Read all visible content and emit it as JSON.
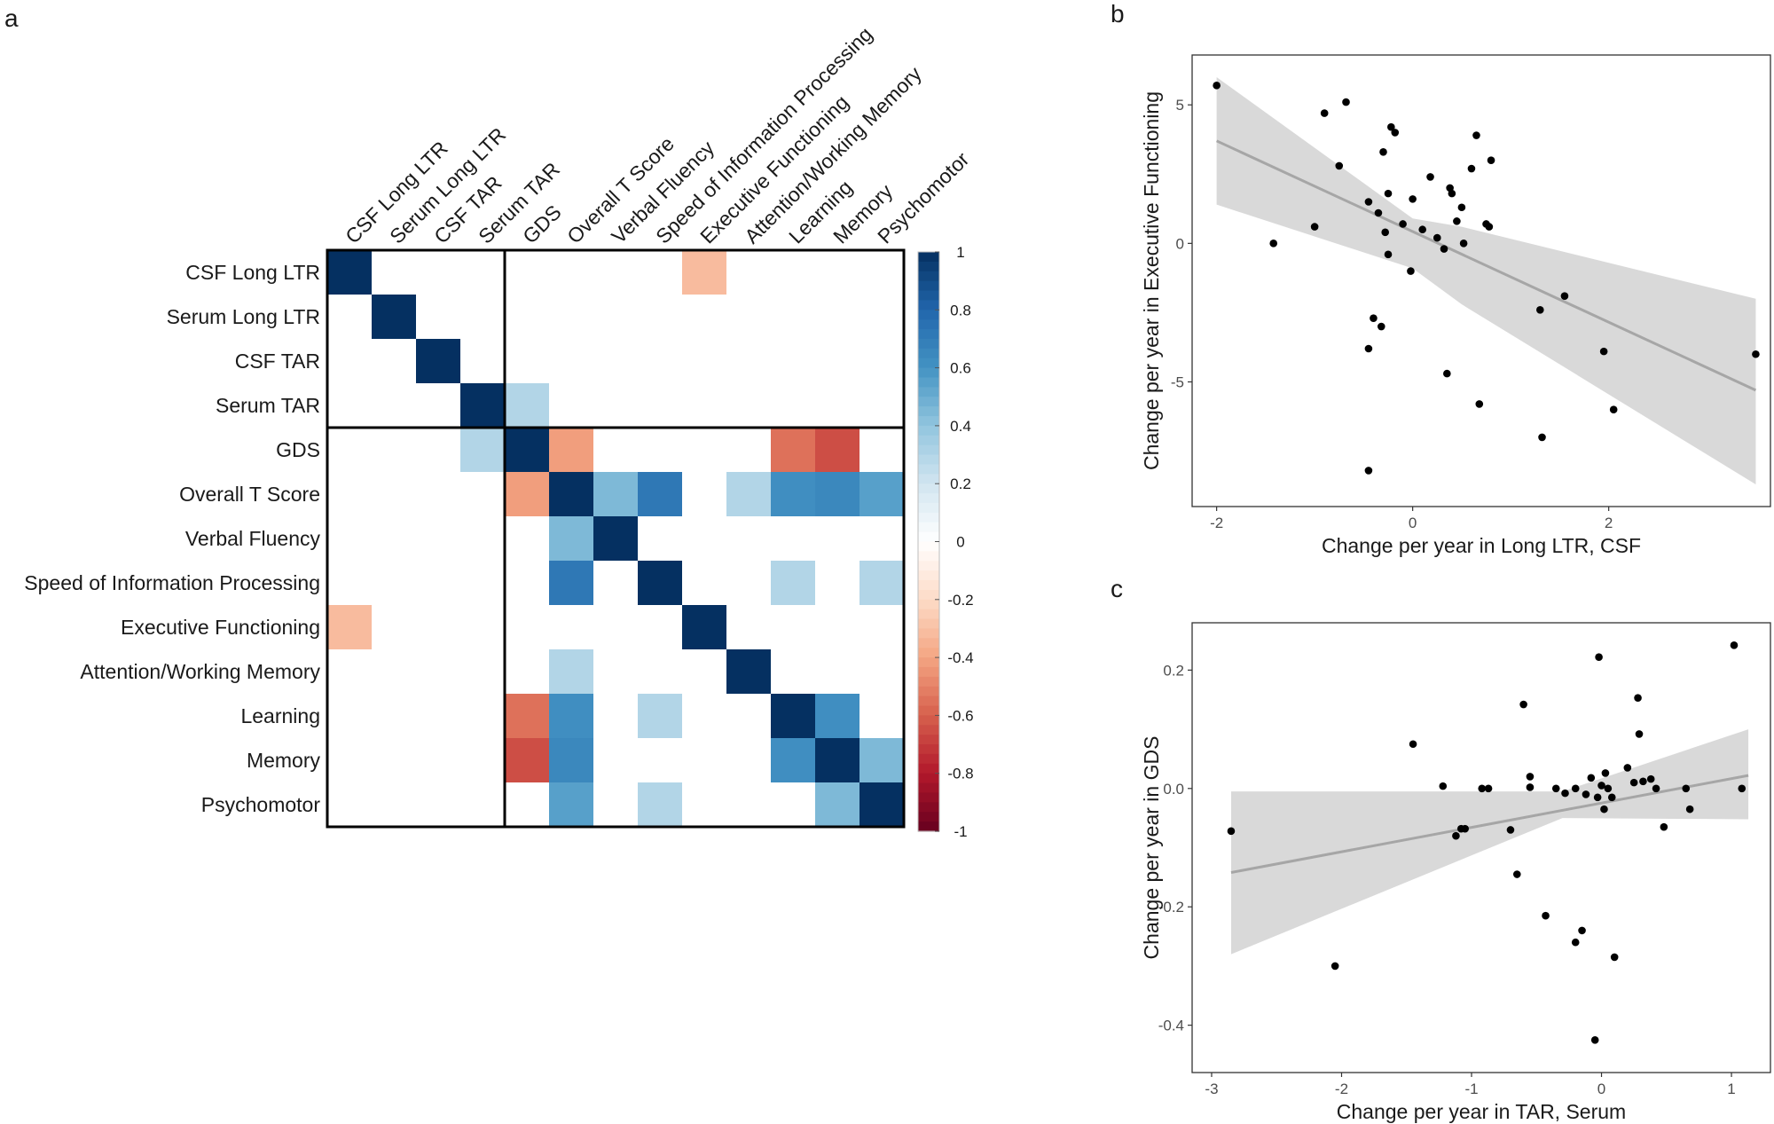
{
  "figure": {
    "panel_a": "a",
    "panel_b": "b",
    "panel_c": "c"
  },
  "chart_data": [
    {
      "type": "heatmap",
      "panel": "a",
      "title": "",
      "row_labels": [
        "CSF Long LTR",
        "Serum Long LTR",
        "CSF TAR",
        "Serum TAR",
        "GDS",
        "Overall T Score",
        "Verbal Fluency",
        "Speed of Information Processing",
        "Executive Functioning",
        "Attention/Working Memory",
        "Learning",
        "Memory",
        "Psychomotor"
      ],
      "col_labels": [
        "CSF Long LTR",
        "Serum Long LTR",
        "CSF TAR",
        "Serum TAR",
        "GDS",
        "Overall T Score",
        "Verbal Fluency",
        "Speed of Information Processing",
        "Executive Functioning",
        "Attention/Working Memory",
        "Learning",
        "Memory",
        "Psychomotor"
      ],
      "cells": [
        [
          0,
          0,
          1
        ],
        [
          0,
          8,
          -0.32
        ],
        [
          1,
          1,
          1
        ],
        [
          2,
          2,
          1
        ],
        [
          3,
          3,
          1
        ],
        [
          3,
          4,
          0.3
        ],
        [
          4,
          3,
          0.3
        ],
        [
          4,
          4,
          1
        ],
        [
          4,
          5,
          -0.42
        ],
        [
          4,
          10,
          -0.55
        ],
        [
          4,
          11,
          -0.65
        ],
        [
          5,
          4,
          -0.42
        ],
        [
          5,
          5,
          1
        ],
        [
          5,
          6,
          0.45
        ],
        [
          5,
          7,
          0.72
        ],
        [
          5,
          9,
          0.3
        ],
        [
          5,
          10,
          0.62
        ],
        [
          5,
          11,
          0.65
        ],
        [
          5,
          12,
          0.55
        ],
        [
          6,
          5,
          0.45
        ],
        [
          6,
          6,
          1
        ],
        [
          7,
          5,
          0.72
        ],
        [
          7,
          7,
          1
        ],
        [
          7,
          10,
          0.3
        ],
        [
          7,
          12,
          0.3
        ],
        [
          8,
          0,
          -0.32
        ],
        [
          8,
          8,
          1
        ],
        [
          9,
          5,
          0.3
        ],
        [
          9,
          9,
          1
        ],
        [
          10,
          4,
          -0.55
        ],
        [
          10,
          5,
          0.62
        ],
        [
          10,
          7,
          0.3
        ],
        [
          10,
          10,
          1
        ],
        [
          10,
          11,
          0.62
        ],
        [
          11,
          4,
          -0.65
        ],
        [
          11,
          5,
          0.65
        ],
        [
          11,
          10,
          0.62
        ],
        [
          11,
          11,
          1
        ],
        [
          11,
          12,
          0.45
        ],
        [
          12,
          5,
          0.55
        ],
        [
          12,
          7,
          0.3
        ],
        [
          12,
          11,
          0.45
        ],
        [
          12,
          12,
          1
        ]
      ],
      "colorbar": {
        "range": [
          -1,
          1
        ],
        "ticks": [
          "1",
          "0.8",
          "0.6",
          "0.4",
          "0.2",
          "0",
          "-0.2",
          "-0.4",
          "-0.6",
          "-0.8",
          "-1"
        ],
        "colors": [
          "#67001f",
          "#b2182b",
          "#d6604d",
          "#f4a582",
          "#fddbc7",
          "#ffffff",
          "#d1e5f0",
          "#92c5de",
          "#4393c3",
          "#2166ac",
          "#053061"
        ]
      }
    },
    {
      "type": "scatter",
      "panel": "b",
      "xlabel": "Change per year in Long LTR, CSF",
      "ylabel": "Change per year in Executive Functioning",
      "xlim": [
        -2.25,
        3.65
      ],
      "ylim": [
        -9.5,
        6.8
      ],
      "xticks": [
        "-2",
        "0",
        "2"
      ],
      "yticks": [
        "5",
        "0",
        "-5"
      ],
      "xtick_values": [
        -2,
        0,
        2
      ],
      "ytick_values": [
        5,
        0,
        -5
      ],
      "points": [
        [
          -2.0,
          5.7
        ],
        [
          -1.42,
          0.0
        ],
        [
          -1.0,
          0.6
        ],
        [
          -0.9,
          4.7
        ],
        [
          -0.75,
          2.8
        ],
        [
          -0.68,
          5.1
        ],
        [
          -0.45,
          1.5
        ],
        [
          -0.4,
          -2.7
        ],
        [
          -0.35,
          1.1
        ],
        [
          -0.3,
          3.3
        ],
        [
          -0.28,
          0.4
        ],
        [
          -0.25,
          1.8
        ],
        [
          -0.25,
          -0.4
        ],
        [
          -0.22,
          4.2
        ],
        [
          -0.18,
          4.0
        ],
        [
          -0.1,
          0.7
        ],
        [
          -0.02,
          -1.0
        ],
        [
          0.0,
          1.6
        ],
        [
          0.1,
          0.5
        ],
        [
          0.18,
          2.4
        ],
        [
          0.25,
          0.2
        ],
        [
          0.32,
          -0.2
        ],
        [
          0.35,
          -4.7
        ],
        [
          0.38,
          2.0
        ],
        [
          0.4,
          1.8
        ],
        [
          0.45,
          0.8
        ],
        [
          0.5,
          1.3
        ],
        [
          0.52,
          0.0
        ],
        [
          0.6,
          2.7
        ],
        [
          0.65,
          3.9
        ],
        [
          0.68,
          -5.8
        ],
        [
          0.75,
          0.7
        ],
        [
          0.78,
          0.6
        ],
        [
          0.8,
          3.0
        ],
        [
          1.3,
          -2.4
        ],
        [
          1.32,
          -7.0
        ],
        [
          1.55,
          -1.9
        ],
        [
          1.95,
          -3.9
        ],
        [
          2.05,
          -6.0
        ],
        [
          3.5,
          -4.0
        ],
        [
          -0.45,
          -3.8
        ],
        [
          -0.45,
          -8.2
        ],
        [
          -0.32,
          -3.0
        ]
      ],
      "fit_line": {
        "x": [
          -2.0,
          3.5
        ],
        "y": [
          3.7,
          -5.3
        ]
      },
      "ci_band": {
        "x": [
          -2.0,
          0.0,
          0.5,
          3.5
        ],
        "lower": [
          1.4,
          -0.9,
          -2.2,
          -8.7
        ],
        "upper": [
          6.0,
          0.9,
          0.6,
          -2.0
        ]
      }
    },
    {
      "type": "scatter",
      "panel": "c",
      "xlabel": "Change per year in TAR, Serum",
      "ylabel": "Change per year in GDS",
      "xlim": [
        -3.15,
        1.3
      ],
      "ylim": [
        -0.48,
        0.28
      ],
      "xticks": [
        "-3",
        "-2",
        "-1",
        "0",
        "1"
      ],
      "yticks": [
        "0.2",
        "0.0",
        "-0.2",
        "-0.4"
      ],
      "xtick_values": [
        -3,
        -2,
        -1,
        0,
        1
      ],
      "ytick_values": [
        0.2,
        0.0,
        -0.2,
        -0.4
      ],
      "points": [
        [
          -2.85,
          -0.072
        ],
        [
          -2.05,
          -0.3
        ],
        [
          -1.45,
          0.075
        ],
        [
          -1.22,
          0.004
        ],
        [
          -1.12,
          -0.08
        ],
        [
          -1.08,
          -0.068
        ],
        [
          -1.05,
          -0.068
        ],
        [
          -0.92,
          0.0
        ],
        [
          -0.87,
          0.0
        ],
        [
          -0.7,
          -0.07
        ],
        [
          -0.65,
          -0.145
        ],
        [
          -0.6,
          0.142
        ],
        [
          -0.55,
          0.02
        ],
        [
          -0.55,
          0.002
        ],
        [
          -0.43,
          -0.215
        ],
        [
          -0.35,
          0.0
        ],
        [
          -0.28,
          -0.008
        ],
        [
          -0.2,
          -0.26
        ],
        [
          -0.2,
          0.0
        ],
        [
          -0.15,
          -0.24
        ],
        [
          -0.12,
          -0.01
        ],
        [
          -0.08,
          0.018
        ],
        [
          -0.05,
          -0.425
        ],
        [
          -0.03,
          -0.015
        ],
        [
          -0.02,
          0.222
        ],
        [
          0.0,
          0.005
        ],
        [
          0.02,
          -0.035
        ],
        [
          0.03,
          0.026
        ],
        [
          0.05,
          0.0
        ],
        [
          0.08,
          -0.015
        ],
        [
          0.1,
          -0.285
        ],
        [
          0.2,
          0.035
        ],
        [
          0.25,
          0.01
        ],
        [
          0.28,
          0.153
        ],
        [
          0.29,
          0.092
        ],
        [
          0.32,
          0.012
        ],
        [
          0.38,
          0.016
        ],
        [
          0.42,
          0.0
        ],
        [
          0.48,
          -0.065
        ],
        [
          0.65,
          0.0
        ],
        [
          0.68,
          -0.035
        ],
        [
          1.02,
          0.242
        ],
        [
          1.08,
          0.0
        ]
      ],
      "fit_line": {
        "x": [
          -2.85,
          1.13
        ],
        "y": [
          -0.142,
          0.022
        ]
      },
      "ci_band": {
        "x": [
          -2.85,
          -0.3,
          1.13
        ],
        "lower": [
          -0.28,
          -0.05,
          -0.052
        ],
        "upper": [
          -0.005,
          -0.005,
          0.1
        ]
      }
    }
  ]
}
